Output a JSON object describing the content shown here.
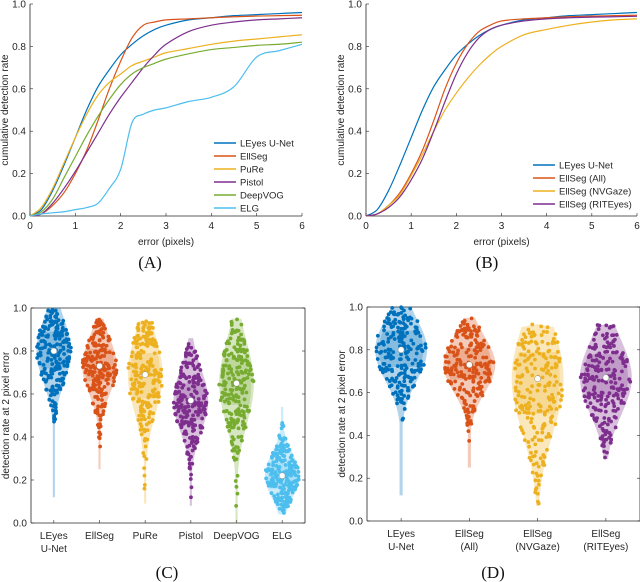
{
  "chart_data": [
    {
      "id": "A",
      "type": "line",
      "panel_label": "(A)",
      "xlabel": "error (pixels)",
      "ylabel": "cumulative detection rate",
      "xlim": [
        0,
        6
      ],
      "ylim": [
        0,
        1
      ],
      "xticks": [
        "0",
        "1",
        "2",
        "3",
        "4",
        "5",
        "6"
      ],
      "yticks": [
        "0.0",
        "0.2",
        "0.4",
        "0.6",
        "0.8",
        "1.0"
      ],
      "legend": "bottom-right",
      "x": [
        0,
        0.25,
        0.5,
        0.75,
        1,
        1.25,
        1.5,
        1.75,
        2,
        2.25,
        2.5,
        2.75,
        3,
        3.5,
        4,
        4.5,
        5,
        5.5,
        6
      ],
      "series": [
        {
          "name": "LEyes U-Net",
          "color": "#0072BD",
          "values": [
            0,
            0.03,
            0.12,
            0.24,
            0.37,
            0.5,
            0.61,
            0.69,
            0.76,
            0.81,
            0.85,
            0.88,
            0.9,
            0.925,
            0.935,
            0.945,
            0.95,
            0.955,
            0.96
          ]
        },
        {
          "name": "EllSeg",
          "color": "#D95319",
          "values": [
            0,
            0.01,
            0.05,
            0.11,
            0.2,
            0.31,
            0.45,
            0.6,
            0.73,
            0.84,
            0.9,
            0.915,
            0.925,
            0.93,
            0.935,
            0.94,
            0.943,
            0.945,
            0.947
          ]
        },
        {
          "name": "PuRe",
          "color": "#EDB120",
          "values": [
            0,
            0.04,
            0.13,
            0.25,
            0.37,
            0.48,
            0.57,
            0.63,
            0.67,
            0.71,
            0.73,
            0.75,
            0.77,
            0.79,
            0.81,
            0.825,
            0.835,
            0.845,
            0.855
          ]
        },
        {
          "name": "Pistol",
          "color": "#7E2F8E",
          "values": [
            0,
            0.01,
            0.06,
            0.13,
            0.21,
            0.3,
            0.39,
            0.48,
            0.56,
            0.63,
            0.7,
            0.76,
            0.81,
            0.87,
            0.9,
            0.915,
            0.925,
            0.93,
            0.935
          ]
        },
        {
          "name": "DeepVOG",
          "color": "#77AC30",
          "values": [
            0,
            0.02,
            0.08,
            0.18,
            0.28,
            0.38,
            0.47,
            0.55,
            0.62,
            0.67,
            0.7,
            0.72,
            0.74,
            0.765,
            0.785,
            0.795,
            0.805,
            0.81,
            0.82
          ]
        },
        {
          "name": "ELG",
          "color": "#4DBEEE",
          "values": [
            0,
            0.01,
            0.015,
            0.02,
            0.03,
            0.04,
            0.06,
            0.13,
            0.22,
            0.44,
            0.48,
            0.5,
            0.51,
            0.54,
            0.56,
            0.61,
            0.75,
            0.78,
            0.81
          ]
        }
      ]
    },
    {
      "id": "B",
      "type": "line",
      "panel_label": "(B)",
      "xlabel": "error (pixels)",
      "ylabel": "cumulative detection rate",
      "xlim": [
        0,
        6
      ],
      "ylim": [
        0,
        1
      ],
      "xticks": [
        "0",
        "1",
        "2",
        "3",
        "4",
        "5",
        "6"
      ],
      "yticks": [
        "0.0",
        "0.2",
        "0.4",
        "0.6",
        "0.8",
        "1.0"
      ],
      "legend": "bottom-right",
      "x": [
        0,
        0.25,
        0.5,
        0.75,
        1,
        1.25,
        1.5,
        1.75,
        2,
        2.25,
        2.5,
        2.75,
        3,
        3.5,
        4,
        4.5,
        5,
        5.5,
        6
      ],
      "series": [
        {
          "name": "LEyes U-Net",
          "color": "#0072BD",
          "values": [
            0,
            0.03,
            0.12,
            0.24,
            0.37,
            0.5,
            0.61,
            0.69,
            0.76,
            0.81,
            0.85,
            0.88,
            0.9,
            0.925,
            0.935,
            0.945,
            0.95,
            0.955,
            0.96
          ]
        },
        {
          "name": "EllSeg (All)",
          "color": "#D95319",
          "values": [
            0,
            0.01,
            0.05,
            0.11,
            0.2,
            0.31,
            0.45,
            0.6,
            0.72,
            0.81,
            0.87,
            0.9,
            0.92,
            0.93,
            0.935,
            0.94,
            0.943,
            0.945,
            0.947
          ]
        },
        {
          "name": "EllSeg (NVGaze)",
          "color": "#EDB120",
          "values": [
            0,
            0.01,
            0.05,
            0.1,
            0.19,
            0.29,
            0.4,
            0.5,
            0.58,
            0.65,
            0.71,
            0.76,
            0.8,
            0.855,
            0.88,
            0.9,
            0.915,
            0.925,
            0.93
          ]
        },
        {
          "name": "EllSeg (RITEyes)",
          "color": "#7E2F8E",
          "values": [
            0,
            0.01,
            0.04,
            0.09,
            0.17,
            0.27,
            0.4,
            0.54,
            0.67,
            0.77,
            0.84,
            0.88,
            0.9,
            0.92,
            0.93,
            0.935,
            0.938,
            0.94,
            0.942
          ]
        }
      ]
    },
    {
      "id": "C",
      "type": "scatter",
      "subtype": "violin-swarm",
      "panel_label": "(C)",
      "xlabel": "",
      "ylabel": "detection rate at 2 pixel error",
      "ylim": [
        0,
        1
      ],
      "yticks": [
        "0.0",
        "0.2",
        "0.4",
        "0.6",
        "0.8",
        "1.0"
      ],
      "categories": [
        {
          "label": [
            "LEyes",
            "U-Net"
          ],
          "color": "#0072BD",
          "median": 0.8,
          "min": 0.12,
          "max": 1.0,
          "q1": 0.72,
          "q3": 0.89
        },
        {
          "label": [
            "EllSeg"
          ],
          "color": "#D95319",
          "median": 0.73,
          "min": 0.25,
          "max": 0.95,
          "q1": 0.66,
          "q3": 0.81
        },
        {
          "label": [
            "PuRe"
          ],
          "color": "#EDB120",
          "median": 0.69,
          "min": 0.09,
          "max": 0.94,
          "q1": 0.58,
          "q3": 0.79
        },
        {
          "label": [
            "Pistol"
          ],
          "color": "#7E2F8E",
          "median": 0.57,
          "min": 0.08,
          "max": 0.86,
          "q1": 0.48,
          "q3": 0.65
        },
        {
          "label": [
            "DeepVOG"
          ],
          "color": "#77AC30",
          "median": 0.65,
          "min": 0.0,
          "max": 0.95,
          "q1": 0.55,
          "q3": 0.77
        },
        {
          "label": [
            "ELG"
          ],
          "color": "#4DBEEE",
          "median": 0.22,
          "min": 0.04,
          "max": 0.54,
          "q1": 0.16,
          "q3": 0.28
        }
      ]
    },
    {
      "id": "D",
      "type": "scatter",
      "subtype": "violin-swarm",
      "panel_label": "(D)",
      "xlabel": "",
      "ylabel": "detection rate at 2 pixel error",
      "ylim": [
        0,
        1
      ],
      "yticks": [
        "0.0",
        "0.2",
        "0.4",
        "0.6",
        "0.8",
        "1.0"
      ],
      "categories": [
        {
          "label": [
            "LEyes",
            "U-Net"
          ],
          "color": "#0072BD",
          "median": 0.8,
          "min": 0.12,
          "max": 1.0,
          "q1": 0.72,
          "q3": 0.89
        },
        {
          "label": [
            "EllSeg",
            "(All)"
          ],
          "color": "#D95319",
          "median": 0.73,
          "min": 0.25,
          "max": 0.95,
          "q1": 0.66,
          "q3": 0.81
        },
        {
          "label": [
            "EllSeg",
            "(NVGaze)"
          ],
          "color": "#EDB120",
          "median": 0.665,
          "min": 0.07,
          "max": 0.92,
          "q1": 0.5,
          "q3": 0.79
        },
        {
          "label": [
            "EllSeg",
            "(RITEyes)"
          ],
          "color": "#7E2F8E",
          "median": 0.67,
          "min": 0.29,
          "max": 0.92,
          "q1": 0.58,
          "q3": 0.78
        }
      ]
    }
  ]
}
